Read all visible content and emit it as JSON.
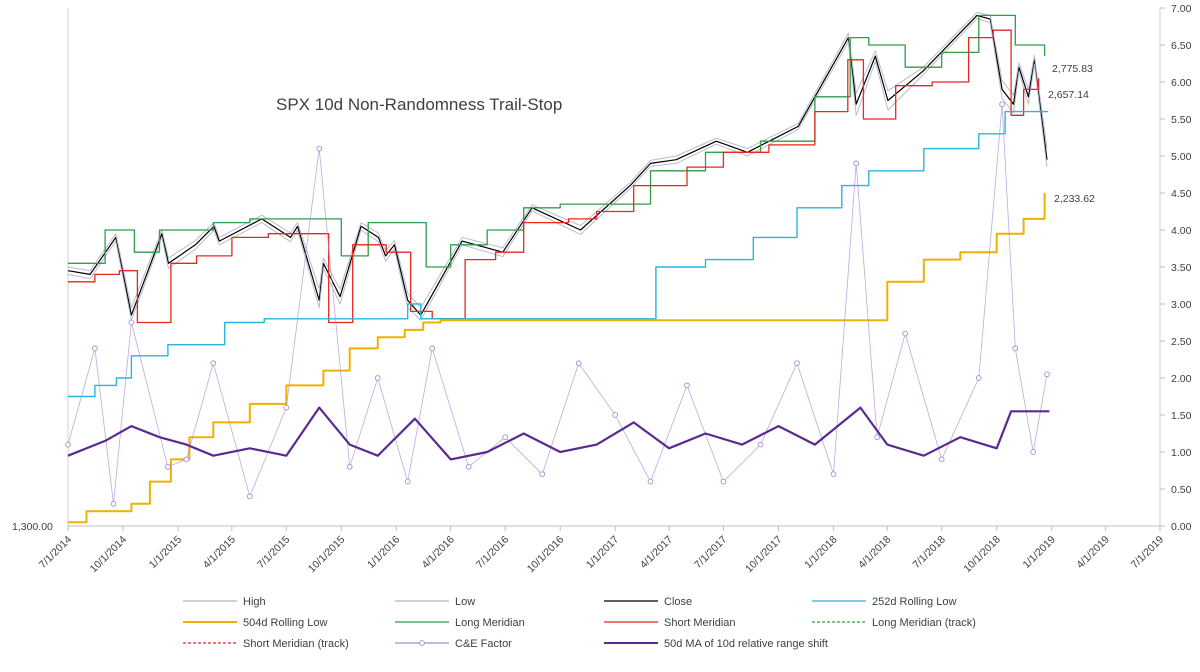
{
  "chart_data": {
    "type": "line",
    "title": "SPX 10d Non-Randomness  Trail-Stop",
    "x_axis": {
      "ticks": [
        "7/1/2014",
        "10/1/2014",
        "1/1/2015",
        "4/1/2015",
        "7/1/2015",
        "10/1/2015",
        "1/1/2016",
        "4/1/2016",
        "7/1/2016",
        "10/1/2016",
        "1/1/2017",
        "4/1/2017",
        "7/1/2017",
        "10/1/2017",
        "1/1/2018",
        "4/1/2018",
        "7/1/2018",
        "10/1/2018",
        "1/1/2019",
        "4/1/2019",
        "7/1/2019"
      ],
      "range": [
        "7/1/2014",
        "7/1/2019"
      ]
    },
    "y_right": {
      "ticks": [
        "0.00",
        "0.50",
        "1.00",
        "1.50",
        "2.00",
        "2.50",
        "3.00",
        "3.50",
        "4.00",
        "4.50",
        "5.00",
        "5.50",
        "6.00",
        "6.50",
        "7.00"
      ],
      "range": [
        0,
        7
      ]
    },
    "y_left_label": "1,300.00",
    "annotations": [
      "2,775.83",
      "2,657.14",
      "2,233.62"
    ],
    "legend": [
      {
        "name": "High",
        "color": "#b4b4c8"
      },
      {
        "name": "Low",
        "color": "#b4b4c8"
      },
      {
        "name": "Close",
        "color": "#000000"
      },
      {
        "name": "252d Rolling Low",
        "color": "#2ab4e0"
      },
      {
        "name": "504d Rolling Low",
        "color": "#f0b000"
      },
      {
        "name": "Long Meridian",
        "color": "#2e9e4a"
      },
      {
        "name": "Short Meridian",
        "color": "#e8281e"
      },
      {
        "name": "Long Meridian (track)",
        "color": "#2e9e4a"
      },
      {
        "name": "Short Meridian (track)",
        "color": "#e8281e"
      },
      {
        "name": "C&E Factor",
        "color": "#a88cd0"
      },
      {
        "name": "50d MA of 10d relative range shift",
        "color": "#5a2a90"
      }
    ],
    "series": [
      {
        "name": "Close",
        "axis": "scaled",
        "x": [
          "7/1/2014",
          "8/7/2014",
          "9/19/2014",
          "10/15/2014",
          "12/5/2014",
          "12/16/2014",
          "1/30/2015",
          "3/2/2015",
          "3/11/2015",
          "5/21/2015",
          "7/8/2015",
          "7/20/2015",
          "8/25/2015",
          "9/1/2015",
          "9/29/2015",
          "11/3/2015",
          "12/2/2015",
          "12/14/2015",
          "12/29/2015",
          "1/20/2016",
          "2/11/2016",
          "4/20/2016",
          "6/27/2016",
          "8/15/2016",
          "11/4/2016",
          "1/26/2017",
          "3/1/2017",
          "4/13/2017",
          "6/19/2017",
          "8/10/2017",
          "11/3/2017",
          "1/26/2018",
          "2/8/2018",
          "3/12/2018",
          "4/2/2018",
          "5/31/2018",
          "8/29/2018",
          "9/20/2018",
          "10/10/2018",
          "10/29/2018",
          "11/7/2018",
          "11/23/2018",
          "12/3/2018",
          "12/24/2018"
        ],
        "values": [
          3.45,
          3.4,
          3.9,
          2.85,
          3.95,
          3.55,
          3.8,
          4.05,
          3.85,
          4.15,
          3.9,
          4.05,
          3.05,
          3.55,
          3.1,
          4.05,
          3.9,
          3.65,
          3.8,
          3.05,
          2.85,
          3.85,
          3.7,
          4.3,
          4.0,
          4.6,
          4.9,
          4.95,
          5.2,
          5.05,
          5.4,
          6.6,
          5.7,
          6.35,
          5.75,
          6.15,
          6.9,
          6.85,
          5.9,
          5.7,
          6.2,
          5.8,
          6.3,
          4.95
        ]
      },
      {
        "name": "High",
        "axis": "scaled",
        "x": [
          "7/1/2014",
          "8/7/2014",
          "9/19/2014",
          "10/15/2014",
          "12/5/2014",
          "12/16/2014",
          "1/30/2015",
          "3/2/2015",
          "3/11/2015",
          "5/21/2015",
          "7/8/2015",
          "7/20/2015",
          "8/25/2015",
          "9/1/2015",
          "9/29/2015",
          "11/3/2015",
          "12/2/2015",
          "12/14/2015",
          "12/29/2015",
          "1/20/2016",
          "2/11/2016",
          "4/20/2016",
          "6/27/2016",
          "8/15/2016",
          "11/4/2016",
          "1/26/2017",
          "3/1/2017",
          "4/13/2017",
          "6/19/2017",
          "8/10/2017",
          "11/3/2017",
          "1/26/2018",
          "2/8/2018",
          "3/12/2018",
          "4/2/2018",
          "5/31/2018",
          "8/29/2018",
          "9/20/2018",
          "10/10/2018",
          "10/29/2018",
          "11/7/2018",
          "11/23/2018",
          "12/3/2018",
          "12/24/2018"
        ],
        "values": [
          3.5,
          3.45,
          3.95,
          2.95,
          4.0,
          3.62,
          3.86,
          4.1,
          3.9,
          4.2,
          3.96,
          4.1,
          3.2,
          3.62,
          3.2,
          4.1,
          3.96,
          3.72,
          3.86,
          3.15,
          2.95,
          3.9,
          3.76,
          4.34,
          4.06,
          4.64,
          4.94,
          5.0,
          5.24,
          5.1,
          5.44,
          6.66,
          5.85,
          6.42,
          5.88,
          6.2,
          6.94,
          6.9,
          6.02,
          5.82,
          6.26,
          5.9,
          6.36,
          5.1
        ]
      },
      {
        "name": "Low",
        "axis": "scaled",
        "x": [
          "7/1/2014",
          "8/7/2014",
          "9/19/2014",
          "10/15/2014",
          "12/5/2014",
          "12/16/2014",
          "1/30/2015",
          "3/2/2015",
          "3/11/2015",
          "5/21/2015",
          "7/8/2015",
          "7/20/2015",
          "8/25/2015",
          "9/1/2015",
          "9/29/2015",
          "11/3/2015",
          "12/2/2015",
          "12/14/2015",
          "12/29/2015",
          "1/20/2016",
          "2/11/2016",
          "4/20/2016",
          "6/27/2016",
          "8/15/2016",
          "11/4/2016",
          "1/26/2017",
          "3/1/2017",
          "4/13/2017",
          "6/19/2017",
          "8/10/2017",
          "11/3/2017",
          "1/26/2018",
          "2/8/2018",
          "3/12/2018",
          "4/2/2018",
          "5/31/2018",
          "8/29/2018",
          "9/20/2018",
          "10/10/2018",
          "10/29/2018",
          "11/7/2018",
          "11/23/2018",
          "12/3/2018",
          "12/24/2018"
        ],
        "values": [
          3.4,
          3.34,
          3.85,
          2.78,
          3.9,
          3.48,
          3.74,
          4.0,
          3.8,
          4.1,
          3.84,
          4.0,
          2.95,
          3.48,
          3.0,
          4.0,
          3.84,
          3.58,
          3.74,
          2.95,
          2.78,
          3.8,
          3.64,
          4.26,
          3.94,
          4.56,
          4.86,
          4.9,
          5.16,
          5.0,
          5.36,
          6.54,
          5.55,
          6.28,
          5.62,
          6.1,
          6.86,
          6.8,
          5.78,
          5.58,
          6.14,
          5.7,
          6.24,
          4.85
        ]
      },
      {
        "name": "Long Meridian",
        "axis": "scaled",
        "x": [
          "7/1/2014",
          "9/1/2014",
          "10/20/2014",
          "12/1/2014",
          "1/10/2015",
          "3/1/2015",
          "5/1/2015",
          "7/1/2015",
          "8/20/2015",
          "10/1/2015",
          "11/15/2015",
          "1/5/2016",
          "2/20/2016",
          "4/1/2016",
          "6/1/2016",
          "8/1/2016",
          "10/1/2016",
          "12/1/2016",
          "3/1/2017",
          "6/1/2017",
          "9/1/2017",
          "12/1/2017",
          "1/29/2018",
          "3/1/2018",
          "5/1/2018",
          "7/1/2018",
          "9/1/2018",
          "10/1/2018",
          "11/1/2018",
          "12/20/2018"
        ],
        "values": [
          3.55,
          4.0,
          3.7,
          4.0,
          4.0,
          4.1,
          4.15,
          4.15,
          4.15,
          3.65,
          4.1,
          4.1,
          3.5,
          3.8,
          4.0,
          4.3,
          4.35,
          4.35,
          4.8,
          5.05,
          5.2,
          5.8,
          6.6,
          6.5,
          6.2,
          6.4,
          6.9,
          6.9,
          6.5,
          6.35
        ]
      },
      {
        "name": "Short Meridian",
        "axis": "scaled",
        "x": [
          "7/1/2014",
          "8/15/2014",
          "9/25/2014",
          "10/25/2014",
          "12/20/2014",
          "2/1/2015",
          "4/1/2015",
          "6/1/2015",
          "8/10/2015",
          "9/10/2015",
          "10/20/2015",
          "12/15/2015",
          "1/25/2016",
          "3/1/2016",
          "4/25/2016",
          "6/15/2016",
          "8/1/2016",
          "10/15/2016",
          "12/1/2016",
          "2/1/2017",
          "5/1/2017",
          "7/1/2017",
          "9/15/2017",
          "12/1/2017",
          "1/25/2018",
          "2/20/2018",
          "4/15/2018",
          "6/15/2018",
          "8/15/2018",
          "9/25/2018",
          "10/25/2018",
          "11/15/2018",
          "12/10/2018"
        ],
        "values": [
          3.3,
          3.4,
          3.45,
          2.75,
          3.55,
          3.65,
          3.9,
          3.95,
          3.95,
          2.75,
          3.8,
          3.7,
          2.9,
          2.8,
          3.6,
          3.7,
          4.1,
          4.15,
          4.25,
          4.6,
          4.85,
          5.05,
          5.15,
          5.6,
          6.3,
          5.5,
          5.95,
          6.0,
          6.6,
          6.7,
          5.55,
          5.9,
          6.05
        ]
      },
      {
        "name": "252d Rolling Low",
        "axis": "scaled",
        "x": [
          "7/1/2014",
          "8/15/2014",
          "9/20/2014",
          "10/15/2014",
          "12/15/2014",
          "3/20/2015",
          "5/25/2015",
          "8/24/2015",
          "1/20/2016",
          "2/11/2016",
          "10/15/2016",
          "2/11/2017",
          "3/10/2017",
          "6/1/2017",
          "8/20/2017",
          "11/1/2017",
          "1/15/2018",
          "3/1/2018",
          "6/1/2018",
          "9/1/2018",
          "10/15/2018",
          "12/26/2018"
        ],
        "values": [
          1.75,
          1.9,
          2.0,
          2.3,
          2.45,
          2.75,
          2.8,
          2.8,
          3.0,
          2.8,
          2.8,
          2.8,
          3.5,
          3.6,
          3.9,
          4.3,
          4.6,
          4.8,
          5.1,
          5.3,
          5.6,
          5.6
        ]
      },
      {
        "name": "504d Rolling Low",
        "axis": "scaled",
        "x": [
          "7/1/2014",
          "8/1/2014",
          "10/15/2014",
          "11/15/2014",
          "12/20/2014",
          "1/20/2015",
          "3/1/2015",
          "5/1/2015",
          "7/1/2015",
          "9/1/2015",
          "10/15/2015",
          "12/1/2015",
          "1/15/2016",
          "2/15/2016",
          "3/15/2016",
          "3/1/2018",
          "4/1/2018",
          "6/1/2018",
          "8/1/2018",
          "10/1/2018",
          "11/15/2018",
          "12/20/2018"
        ],
        "values": [
          0.05,
          0.2,
          0.3,
          0.6,
          0.9,
          1.2,
          1.4,
          1.65,
          1.9,
          2.1,
          2.4,
          2.55,
          2.65,
          2.75,
          2.78,
          2.78,
          3.3,
          3.6,
          3.7,
          3.95,
          4.15,
          4.5
        ]
      },
      {
        "name": "C&E Factor",
        "axis": "right",
        "x": [
          "7/1/2014",
          "8/15/2014",
          "9/15/2014",
          "10/15/2014",
          "12/15/2014",
          "1/15/2015",
          "3/1/2015",
          "5/1/2015",
          "7/1/2015",
          "8/25/2015",
          "10/15/2015",
          "12/1/2015",
          "1/20/2016",
          "3/1/2016",
          "5/1/2016",
          "7/1/2016",
          "9/1/2016",
          "11/1/2016",
          "1/1/2017",
          "3/1/2017",
          "5/1/2017",
          "7/1/2017",
          "9/1/2017",
          "11/1/2017",
          "1/1/2018",
          "2/8/2018",
          "3/15/2018",
          "5/1/2018",
          "7/1/2018",
          "9/1/2018",
          "10/10/2018",
          "11/1/2018",
          "12/1/2018",
          "12/24/2018"
        ],
        "values": [
          1.1,
          2.4,
          0.3,
          2.75,
          0.8,
          0.9,
          2.2,
          0.4,
          1.6,
          5.1,
          0.8,
          2.0,
          0.6,
          2.4,
          0.8,
          1.2,
          0.7,
          2.2,
          1.5,
          0.6,
          1.9,
          0.6,
          1.1,
          2.2,
          0.7,
          4.9,
          1.2,
          2.6,
          0.9,
          2.0,
          5.7,
          2.4,
          1.0,
          2.05
        ]
      },
      {
        "name": "50d MA of 10d relative range shift",
        "axis": "right",
        "x": [
          "7/1/2014",
          "9/1/2014",
          "10/15/2014",
          "12/1/2014",
          "1/15/2015",
          "3/1/2015",
          "5/1/2015",
          "7/1/2015",
          "8/25/2015",
          "10/15/2015",
          "12/1/2015",
          "2/1/2016",
          "4/1/2016",
          "6/1/2016",
          "8/1/2016",
          "10/1/2016",
          "12/1/2016",
          "2/1/2017",
          "4/1/2017",
          "6/1/2017",
          "8/1/2017",
          "10/1/2017",
          "12/1/2017",
          "2/15/2018",
          "4/1/2018",
          "6/1/2018",
          "8/1/2018",
          "10/1/2018",
          "10/25/2018",
          "12/1/2018",
          "12/28/2018"
        ],
        "values": [
          0.95,
          1.15,
          1.35,
          1.2,
          1.1,
          0.95,
          1.05,
          0.95,
          1.6,
          1.1,
          0.95,
          1.45,
          0.9,
          1.0,
          1.25,
          1.0,
          1.1,
          1.4,
          1.05,
          1.25,
          1.1,
          1.35,
          1.1,
          1.6,
          1.1,
          0.95,
          1.2,
          1.05,
          1.55,
          1.55,
          1.55
        ]
      }
    ]
  }
}
